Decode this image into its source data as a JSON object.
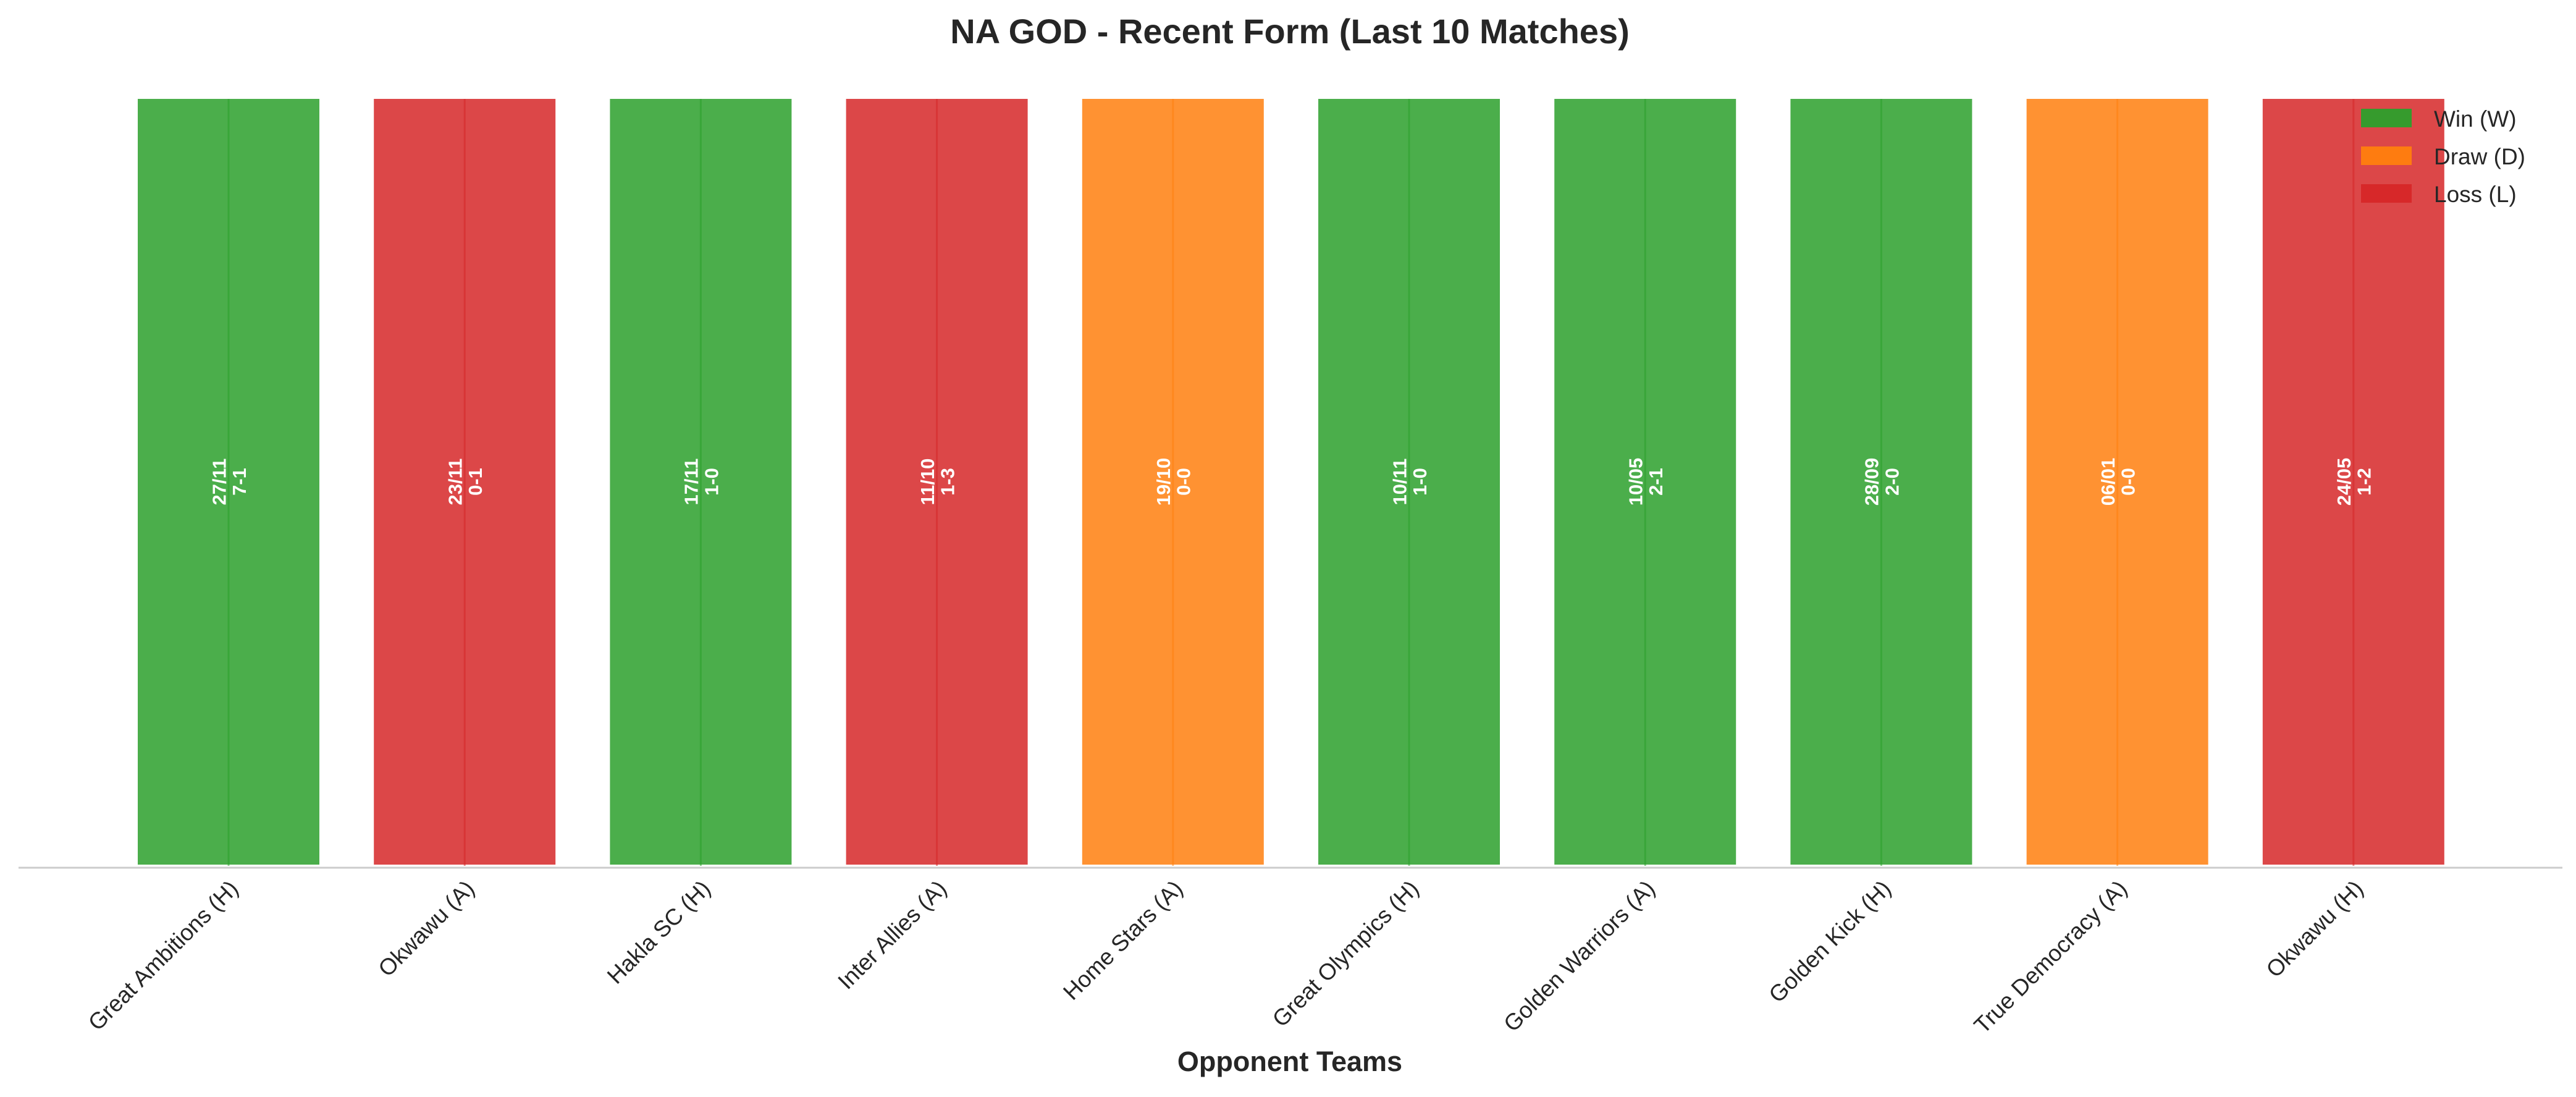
{
  "chart_data": {
    "type": "bar",
    "title": "NA GOD - Recent Form (Last 10 Matches)",
    "xlabel": "Opponent Teams",
    "ylabel": "",
    "ylim": [
      0,
      1
    ],
    "grid": false,
    "legend_position": "top-right",
    "categories": [
      "Great Ambitions (H)",
      "Okwawu (A)",
      "Hakla SC (H)",
      "Inter Allies (A)",
      "Home Stars (A)",
      "Great Olympics (H)",
      "Golden Warriors (A)",
      "Golden Kick (H)",
      "True Democracy (A)",
      "Okwawu (H)"
    ],
    "values": [
      1,
      1,
      1,
      1,
      1,
      1,
      1,
      1,
      1,
      1
    ],
    "results": [
      "W",
      "L",
      "W",
      "L",
      "D",
      "W",
      "W",
      "W",
      "D",
      "L"
    ],
    "dates": [
      "27/11",
      "23/11",
      "17/11",
      "11/10",
      "19/10",
      "10/11",
      "10/05",
      "28/09",
      "06/01",
      "24/05"
    ],
    "scores": [
      "7-1",
      "0-1",
      "1-0",
      "1-3",
      "0-0",
      "1-0",
      "2-1",
      "2-0",
      "0-0",
      "1-2"
    ],
    "legend": [
      {
        "key": "W",
        "label": "Win (W)",
        "color": "#2ca02c"
      },
      {
        "key": "D",
        "label": "Draw (D)",
        "color": "#ff7f0e"
      },
      {
        "key": "L",
        "label": "Loss (L)",
        "color": "#d62728"
      }
    ],
    "colors": {
      "W": "#2ca02c",
      "D": "#ff7f0e",
      "L": "#d62728"
    }
  }
}
